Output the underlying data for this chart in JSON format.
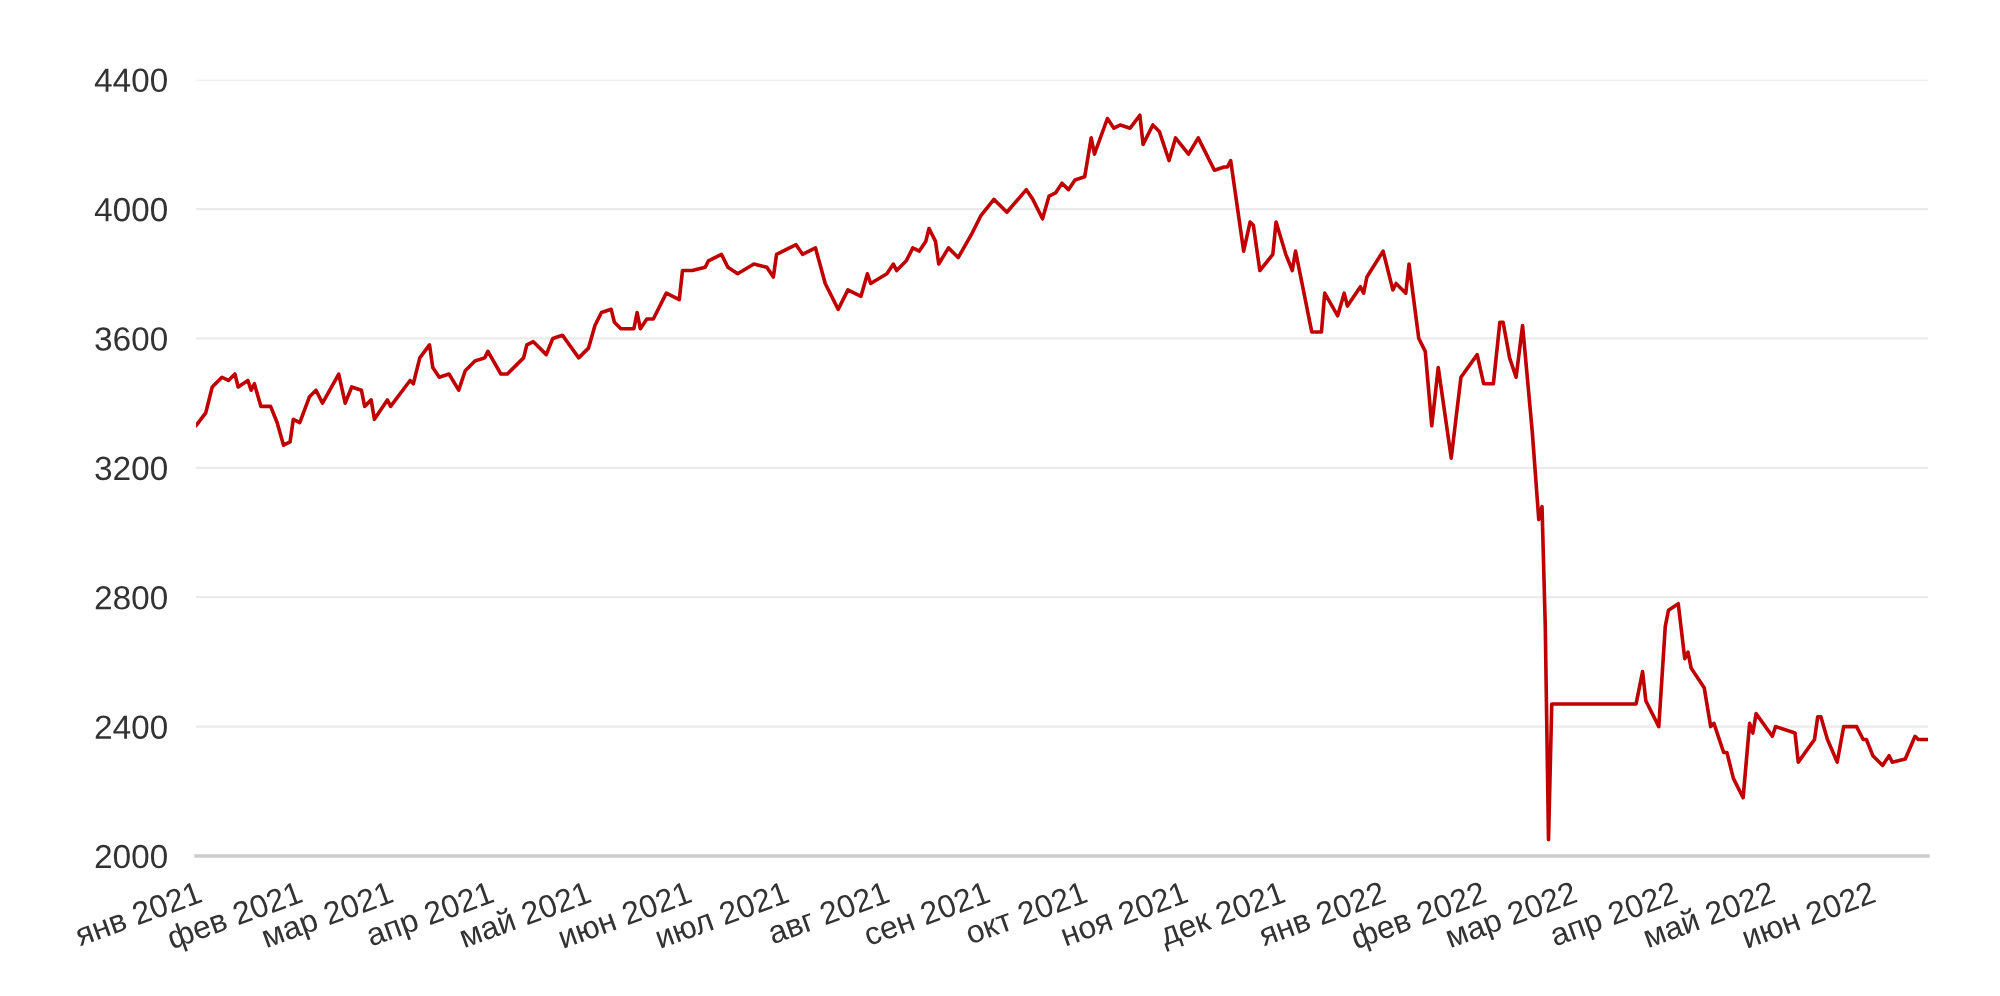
{
  "chart_data": {
    "type": "line",
    "x": [
      "2021-01-01",
      "2021-01-04",
      "2021-01-06",
      "2021-01-09",
      "2021-01-11",
      "2021-01-13",
      "2021-01-14",
      "2021-01-17",
      "2021-01-18",
      "2021-01-19",
      "2021-01-21",
      "2021-01-24",
      "2021-01-26",
      "2021-01-28",
      "2021-01-30",
      "2021-01-31",
      "2021-02-02",
      "2021-02-05",
      "2021-02-07",
      "2021-02-09",
      "2021-02-14",
      "2021-02-16",
      "2021-02-18",
      "2021-02-21",
      "2021-02-22",
      "2021-02-24",
      "2021-02-25",
      "2021-03-01",
      "2021-03-02",
      "2021-03-08",
      "2021-03-09",
      "2021-03-11",
      "2021-03-14",
      "2021-03-15",
      "2021-03-17",
      "2021-03-20",
      "2021-03-23",
      "2021-03-25",
      "2021-03-28",
      "2021-03-31",
      "2021-04-01",
      "2021-04-05",
      "2021-04-07",
      "2021-04-12",
      "2021-04-13",
      "2021-04-15",
      "2021-04-19",
      "2021-04-21",
      "2021-04-24",
      "2021-04-29",
      "2021-05-02",
      "2021-05-04",
      "2021-05-06",
      "2021-05-09",
      "2021-05-10",
      "2021-05-12",
      "2021-05-16",
      "2021-05-17",
      "2021-05-18",
      "2021-05-20",
      "2021-05-22",
      "2021-05-26",
      "2021-05-30",
      "2021-05-31",
      "2021-06-03",
      "2021-06-07",
      "2021-06-08",
      "2021-06-12",
      "2021-06-14",
      "2021-06-17",
      "2021-06-22",
      "2021-06-26",
      "2021-06-28",
      "2021-06-29",
      "2021-07-05",
      "2021-07-07",
      "2021-07-11",
      "2021-07-14",
      "2021-07-18",
      "2021-07-21",
      "2021-07-23",
      "2021-07-25",
      "2021-07-27",
      "2021-07-28",
      "2021-08-02",
      "2021-08-04",
      "2021-08-05",
      "2021-08-08",
      "2021-08-10",
      "2021-08-12",
      "2021-08-14",
      "2021-08-15",
      "2021-08-17",
      "2021-08-18",
      "2021-08-21",
      "2021-08-24",
      "2021-08-28",
      "2021-08-31",
      "2021-09-04",
      "2021-09-06",
      "2021-09-08",
      "2021-09-14",
      "2021-09-16",
      "2021-09-19",
      "2021-09-21",
      "2021-09-23",
      "2021-09-25",
      "2021-09-27",
      "2021-09-29",
      "2021-10-02",
      "2021-10-04",
      "2021-10-05",
      "2021-10-09",
      "2021-10-11",
      "2021-10-13",
      "2021-10-16",
      "2021-10-19",
      "2021-10-20",
      "2021-10-23",
      "2021-10-25",
      "2021-10-28",
      "2021-10-30",
      "2021-11-03",
      "2021-11-06",
      "2021-11-08",
      "2021-11-11",
      "2021-11-14",
      "2021-11-15",
      "2021-11-16",
      "2021-11-18",
      "2021-11-20",
      "2021-11-22",
      "2021-11-23",
      "2021-11-25",
      "2021-11-29",
      "2021-11-30",
      "2021-12-03",
      "2021-12-05",
      "2021-12-06",
      "2021-12-08",
      "2021-12-11",
      "2021-12-14",
      "2021-12-15",
      "2021-12-19",
      "2021-12-21",
      "2021-12-22",
      "2021-12-26",
      "2021-12-27",
      "2021-12-28",
      "2022-01-02",
      "2022-01-05",
      "2022-01-06",
      "2022-01-09",
      "2022-01-10",
      "2022-01-13",
      "2022-01-15",
      "2022-01-17",
      "2022-01-19",
      "2022-01-23",
      "2022-01-26",
      "2022-01-31",
      "2022-02-02",
      "2022-02-05",
      "2022-02-07",
      "2022-02-08",
      "2022-02-10",
      "2022-02-12",
      "2022-02-14",
      "2022-02-17",
      "2022-02-19",
      "2022-02-20",
      "2022-02-21",
      "2022-02-22",
      "2022-02-23",
      "2022-03-21",
      "2022-03-23",
      "2022-03-24",
      "2022-03-28",
      "2022-03-30",
      "2022-03-31",
      "2022-04-03",
      "2022-04-05",
      "2022-04-06",
      "2022-04-07",
      "2022-04-11",
      "2022-04-13",
      "2022-04-14",
      "2022-04-17",
      "2022-04-18",
      "2022-04-20",
      "2022-04-23",
      "2022-04-25",
      "2022-04-26",
      "2022-04-27",
      "2022-05-02",
      "2022-05-03",
      "2022-05-09",
      "2022-05-10",
      "2022-05-15",
      "2022-05-16",
      "2022-05-17",
      "2022-05-19",
      "2022-05-22",
      "2022-05-24",
      "2022-05-28",
      "2022-05-30",
      "2022-05-31",
      "2022-06-02",
      "2022-06-05",
      "2022-06-07",
      "2022-06-08",
      "2022-06-12",
      "2022-06-15",
      "2022-06-16",
      "2022-06-19"
    ],
    "series": [
      {
        "color": "#c00000",
        "values": [
          3330,
          3370,
          3450,
          3480,
          3470,
          3490,
          3450,
          3470,
          3440,
          3460,
          3390,
          3390,
          3340,
          3270,
          3280,
          3350,
          3340,
          3420,
          3440,
          3400,
          3490,
          3400,
          3450,
          3440,
          3390,
          3410,
          3350,
          3410,
          3390,
          3470,
          3460,
          3540,
          3580,
          3510,
          3480,
          3490,
          3440,
          3500,
          3530,
          3540,
          3560,
          3490,
          3490,
          3540,
          3580,
          3590,
          3550,
          3600,
          3610,
          3540,
          3570,
          3640,
          3680,
          3690,
          3650,
          3630,
          3630,
          3680,
          3630,
          3660,
          3660,
          3740,
          3720,
          3810,
          3810,
          3820,
          3840,
          3860,
          3820,
          3800,
          3830,
          3820,
          3790,
          3860,
          3890,
          3860,
          3880,
          3770,
          3690,
          3750,
          3740,
          3730,
          3800,
          3770,
          3800,
          3830,
          3810,
          3840,
          3880,
          3870,
          3900,
          3940,
          3900,
          3830,
          3880,
          3850,
          3920,
          3980,
          4030,
          4010,
          3990,
          4060,
          4030,
          3970,
          4040,
          4050,
          4080,
          4060,
          4090,
          4100,
          4220,
          4170,
          4280,
          4250,
          4260,
          4250,
          4290,
          4200,
          4260,
          4240,
          4150,
          4220,
          4170,
          4220,
          4180,
          4120,
          4130,
          4130,
          4150,
          4010,
          3870,
          3960,
          3950,
          3810,
          3860,
          3960,
          3860,
          3810,
          3870,
          3770,
          3620,
          3620,
          3740,
          3670,
          3740,
          3700,
          3760,
          3740,
          3790,
          3870,
          3750,
          3770,
          3740,
          3830,
          3600,
          3560,
          3330,
          3510,
          3230,
          3480,
          3550,
          3460,
          3460,
          3650,
          3650,
          3540,
          3480,
          3640,
          3310,
          3040,
          3080,
          2710,
          2050,
          2470,
          2470,
          2570,
          2480,
          2400,
          2710,
          2760,
          2780,
          2610,
          2630,
          2580,
          2520,
          2400,
          2410,
          2320,
          2320,
          2240,
          2180,
          2410,
          2380,
          2440,
          2370,
          2400,
          2380,
          2290,
          2360,
          2430,
          2430,
          2360,
          2290,
          2400,
          2400,
          2360,
          2360,
          2310,
          2280,
          2310,
          2290,
          2300,
          2370,
          2360,
          2360
        ]
      }
    ],
    "xlim": [
      "2021-01-01",
      "2022-06-19"
    ],
    "xticks": [
      {
        "value": "2021-01-01",
        "label": "янв 2021"
      },
      {
        "value": "2021-02-01",
        "label": "фев 2021"
      },
      {
        "value": "2021-03-01",
        "label": "мар 2021"
      },
      {
        "value": "2021-04-01",
        "label": "апр 2021"
      },
      {
        "value": "2021-05-01",
        "label": "май 2021"
      },
      {
        "value": "2021-06-01",
        "label": "июн 2021"
      },
      {
        "value": "2021-07-01",
        "label": "июл 2021"
      },
      {
        "value": "2021-08-01",
        "label": "авг 2021"
      },
      {
        "value": "2021-09-01",
        "label": "сен 2021"
      },
      {
        "value": "2021-10-01",
        "label": "окт 2021"
      },
      {
        "value": "2021-11-01",
        "label": "ноя 2021"
      },
      {
        "value": "2021-12-01",
        "label": "дек 2021"
      },
      {
        "value": "2022-01-01",
        "label": "янв 2022"
      },
      {
        "value": "2022-02-01",
        "label": "фев 2022"
      },
      {
        "value": "2022-03-01",
        "label": "мар 2022"
      },
      {
        "value": "2022-04-01",
        "label": "апр 2022"
      },
      {
        "value": "2022-05-01",
        "label": "май 2022"
      },
      {
        "value": "2022-06-01",
        "label": "июн 2022"
      }
    ],
    "ylim": [
      2000,
      4400
    ],
    "yticks": [
      2000,
      2400,
      2800,
      3200,
      3600,
      4000,
      4400
    ],
    "grid": "y",
    "marker": "none",
    "line_style": "solid"
  }
}
